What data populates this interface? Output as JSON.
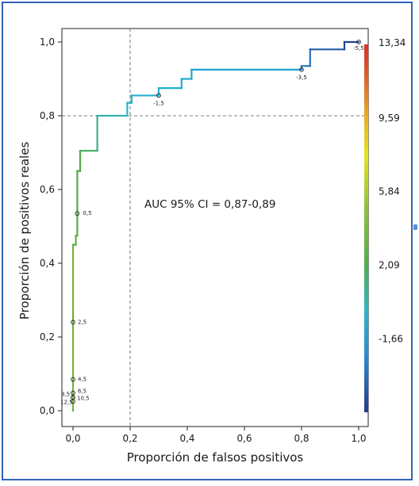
{
  "chart_data": {
    "type": "line",
    "title": "",
    "xlabel": "Proporción de falsos positivos",
    "ylabel": "Proporción de positivos reales",
    "xlim": [
      -0.04,
      1.03
    ],
    "ylim": [
      -0.01,
      1.03
    ],
    "x_ticks": [
      0.0,
      0.2,
      0.4,
      0.6,
      0.8,
      1.0
    ],
    "x_tick_labels": [
      "0,0",
      "0,2",
      "0,4",
      "0,6",
      "0,8",
      "1,0"
    ],
    "y_ticks": [
      0.0,
      0.2,
      0.4,
      0.6,
      0.8,
      1.0
    ],
    "y_tick_labels": [
      "0,0",
      "0,2",
      "0,4",
      "0,6",
      "0,8",
      "1,0"
    ],
    "annotation": "AUC 95% CI = 0,87-0,89",
    "reference_lines": {
      "x": 0.2,
      "y": 0.8,
      "style": "dashed"
    },
    "grid": false,
    "roc_curve": [
      [
        0.0,
        0.0
      ],
      [
        0.0,
        0.45
      ],
      [
        0.01,
        0.45
      ],
      [
        0.01,
        0.475
      ],
      [
        0.015,
        0.475
      ],
      [
        0.015,
        0.65
      ],
      [
        0.025,
        0.65
      ],
      [
        0.025,
        0.705
      ],
      [
        0.085,
        0.705
      ],
      [
        0.085,
        0.8
      ],
      [
        0.19,
        0.8
      ],
      [
        0.19,
        0.835
      ],
      [
        0.205,
        0.835
      ],
      [
        0.205,
        0.855
      ],
      [
        0.3,
        0.855
      ],
      [
        0.3,
        0.875
      ],
      [
        0.38,
        0.875
      ],
      [
        0.38,
        0.9
      ],
      [
        0.415,
        0.9
      ],
      [
        0.415,
        0.925
      ],
      [
        0.8,
        0.925
      ],
      [
        0.8,
        0.935
      ],
      [
        0.83,
        0.935
      ],
      [
        0.83,
        0.98
      ],
      [
        0.95,
        0.98
      ],
      [
        0.95,
        1.0
      ],
      [
        1.0,
        1.0
      ]
    ],
    "threshold_points": [
      {
        "x": 0.0,
        "y": 0.025,
        "label": "12,5"
      },
      {
        "x": 0.0,
        "y": 0.036,
        "label": "8,5"
      },
      {
        "x": 0.0,
        "y": 0.036,
        "label": "10,5"
      },
      {
        "x": 0.0,
        "y": 0.048,
        "label": "6,5"
      },
      {
        "x": 0.0,
        "y": 0.085,
        "label": "4,5"
      },
      {
        "x": 0.0,
        "y": 0.24,
        "label": "2,5"
      },
      {
        "x": 0.015,
        "y": 0.535,
        "label": "0,5"
      },
      {
        "x": 0.3,
        "y": 0.855,
        "label": "-1,5"
      },
      {
        "x": 0.8,
        "y": 0.925,
        "label": "-3,5"
      },
      {
        "x": 1.0,
        "y": 1.0,
        "label": "-5,5"
      }
    ],
    "colorbar": {
      "tick_labels": [
        "13,34",
        "9,59",
        "5,84",
        "2,09",
        "-1,66"
      ],
      "tick_values": [
        13.34,
        9.59,
        5.84,
        2.09,
        -1.66
      ],
      "range": [
        -5.4,
        13.34
      ]
    }
  }
}
